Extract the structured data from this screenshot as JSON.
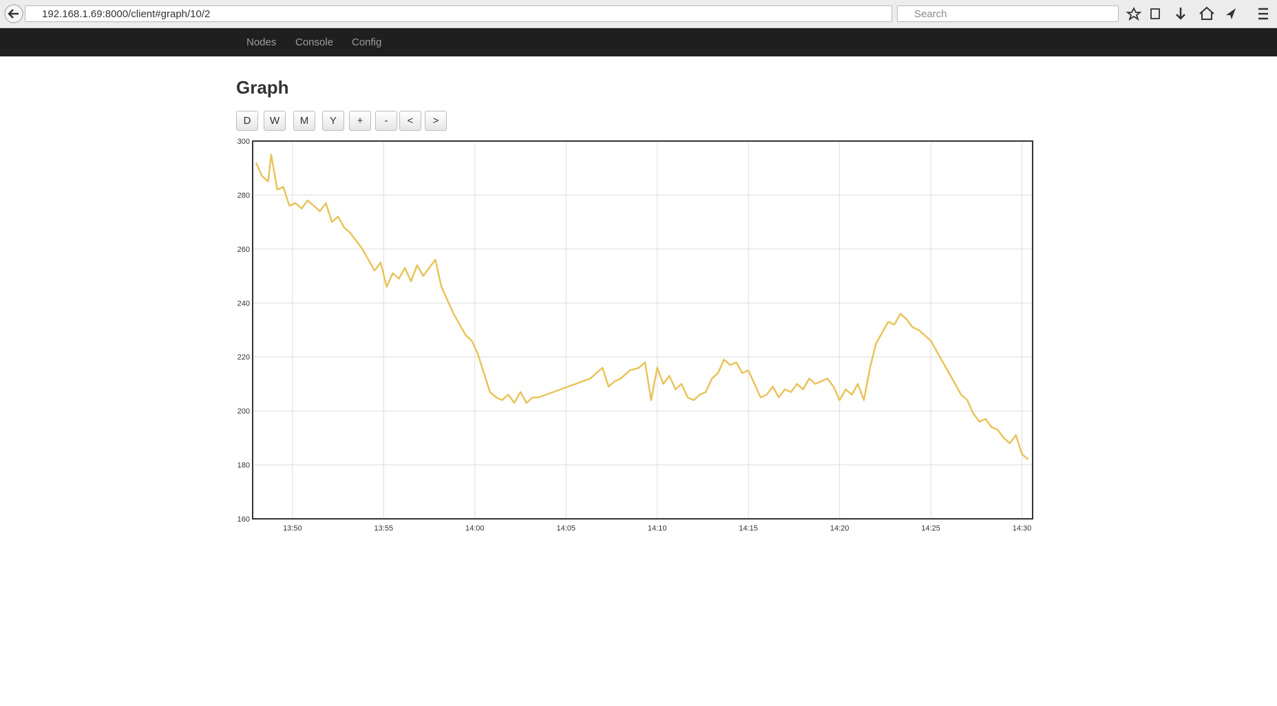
{
  "browser": {
    "url": "192.168.1.69:8000/client#graph/10/2",
    "search_placeholder": "Search"
  },
  "nav": [
    "Nodes",
    "Console",
    "Config"
  ],
  "heading": "Graph",
  "buttons": [
    "D",
    "W",
    "M",
    "Y",
    "+",
    "-",
    "<",
    ">"
  ],
  "chart_data": {
    "type": "line",
    "x": [
      "13:48:00",
      "13:48:20",
      "13:48:40",
      "13:48:50",
      "13:49:10",
      "13:49:30",
      "13:49:50",
      "13:50:10",
      "13:50:30",
      "13:50:50",
      "13:51:10",
      "13:51:30",
      "13:51:50",
      "13:52:10",
      "13:52:30",
      "13:52:50",
      "13:53:10",
      "13:53:30",
      "13:53:50",
      "13:54:10",
      "13:54:30",
      "13:54:50",
      "13:55:10",
      "13:55:30",
      "13:55:50",
      "13:56:10",
      "13:56:30",
      "13:56:50",
      "13:57:10",
      "13:57:30",
      "13:57:50",
      "13:58:10",
      "13:58:30",
      "13:58:50",
      "13:59:10",
      "13:59:30",
      "13:59:50",
      "14:00:10",
      "14:00:30",
      "14:00:50",
      "14:01:10",
      "14:01:30",
      "14:01:50",
      "14:02:10",
      "14:02:30",
      "14:02:50",
      "14:03:10",
      "14:03:30",
      "14:06:20",
      "14:06:40",
      "14:07:00",
      "14:07:20",
      "14:07:40",
      "14:08:00",
      "14:08:30",
      "14:09:00",
      "14:09:20",
      "14:09:40",
      "14:10:00",
      "14:10:20",
      "14:10:40",
      "14:11:00",
      "14:11:20",
      "14:11:40",
      "14:12:00",
      "14:12:20",
      "14:12:40",
      "14:13:00",
      "14:13:20",
      "14:13:40",
      "14:14:00",
      "14:14:20",
      "14:14:40",
      "14:15:00",
      "14:15:20",
      "14:15:40",
      "14:16:00",
      "14:16:20",
      "14:16:40",
      "14:17:00",
      "14:17:20",
      "14:17:40",
      "14:18:00",
      "14:18:20",
      "14:18:40",
      "14:19:00",
      "14:19:20",
      "14:19:40",
      "14:20:00",
      "14:20:20",
      "14:20:40",
      "14:21:00",
      "14:21:20",
      "14:21:40",
      "14:22:00",
      "14:22:20",
      "14:22:40",
      "14:23:00",
      "14:23:20",
      "14:23:40",
      "14:24:00",
      "14:24:20",
      "14:24:40",
      "14:25:00",
      "14:25:20",
      "14:25:40",
      "14:26:00",
      "14:26:20",
      "14:26:40",
      "14:27:00",
      "14:27:20",
      "14:27:40",
      "14:28:00",
      "14:28:20",
      "14:28:40",
      "14:29:00",
      "14:29:20",
      "14:29:40",
      "14:30:00",
      "14:30:20"
    ],
    "series": [
      {
        "color": "#e8c35a",
        "values": [
          292,
          287,
          285,
          295,
          282,
          283,
          276,
          277,
          275,
          278,
          276,
          274,
          277,
          270,
          272,
          268,
          266,
          263,
          260,
          256,
          252,
          255,
          246,
          251,
          249,
          253,
          248,
          254,
          250,
          253,
          256,
          246,
          241,
          236,
          232,
          228,
          226,
          221,
          214,
          207,
          205,
          204,
          206,
          203,
          207,
          203,
          205,
          205,
          212,
          214,
          216,
          209,
          211,
          212,
          215,
          216,
          218,
          204,
          216,
          210,
          213,
          208,
          210,
          205,
          204,
          206,
          207,
          212,
          214,
          219,
          217,
          218,
          214,
          215,
          210,
          205,
          206,
          209,
          205,
          208,
          207,
          210,
          208,
          212,
          210,
          211,
          212,
          209,
          204,
          208,
          206,
          210,
          204,
          216,
          225,
          229,
          233,
          232,
          236,
          234,
          231,
          230,
          228,
          226,
          222,
          218,
          214,
          210,
          206,
          204,
          199,
          196,
          197,
          194,
          193,
          190,
          188,
          191,
          184,
          182
        ]
      }
    ],
    "xlim": [
      "13:47:49",
      "14:30:35"
    ],
    "xticks": [
      "13:50",
      "13:55",
      "14:00",
      "14:05",
      "14:10",
      "14:15",
      "14:20",
      "14:25",
      "14:30"
    ],
    "ylim": [
      160,
      300
    ],
    "yticks": [
      160,
      180,
      200,
      220,
      240,
      260,
      280,
      300
    ],
    "grid": true
  }
}
